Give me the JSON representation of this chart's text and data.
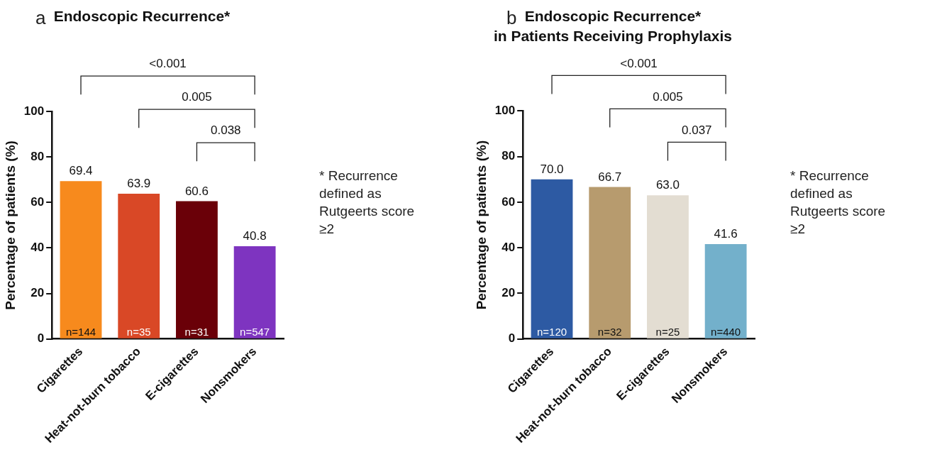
{
  "chart_data": [
    {
      "type": "bar",
      "title": "Endoscopic Recurrence*",
      "ylabel": "Percentage of patients (%)",
      "categories": [
        "Cigarettes",
        "Heat-not-burn tobacco",
        "E-cigarettes",
        "Nonsmokers"
      ],
      "values": [
        69.4,
        63.9,
        60.6,
        40.8
      ],
      "value_labels": [
        "69.4",
        "63.9",
        "60.6",
        "40.8"
      ],
      "colors": [
        "#f78a1d",
        "#d94826",
        "#6a0008",
        "#7e34c0"
      ],
      "ylim": [
        0,
        100
      ],
      "yticks": [
        0,
        20,
        40,
        60,
        80,
        100
      ],
      "grid": false,
      "legend": false,
      "annotations": [
        "a",
        "<0.001",
        "0.005",
        "0.038",
        "* Recurrence defined as Rutgeerts score ≥2",
        {
          "text": "n=144",
          "x": "Cigarettes",
          "y": 0
        },
        {
          "text": "n=35",
          "x": "Heat-not-burn tobacco",
          "y": 0
        },
        {
          "text": "n=31",
          "x": "E-cigarettes",
          "y": 0
        },
        {
          "text": "n=547",
          "x": "Nonsmokers",
          "y": 0
        }
      ]
    },
    {
      "type": "bar",
      "title": "Endoscopic Recurrence*",
      "subtitle": "in Patients Receiving Prophylaxis",
      "ylabel": "Percentage of patients (%)",
      "categories": [
        "Cigarettes",
        "Heat-not-burn tobacco",
        "E-cigarettes",
        "Nonsmokers"
      ],
      "values": [
        70.0,
        66.7,
        63.0,
        41.6
      ],
      "value_labels": [
        "70.0",
        "66.7",
        "63.0",
        "41.6"
      ],
      "colors": [
        "#2d5aa3",
        "#b79b6e",
        "#e3ddd2",
        "#73b0cb"
      ],
      "ylim": [
        0,
        100
      ],
      "yticks": [
        0,
        20,
        40,
        60,
        80,
        100
      ],
      "grid": false,
      "legend": false,
      "annotations": [
        "b",
        "<0.001",
        "0.005",
        "0.037",
        "* Recurrence defined as Rutgeerts score ≥2",
        {
          "text": "n=120",
          "x": "Cigarettes",
          "y": 0
        },
        {
          "text": "n=32",
          "x": "Heat-not-burn tobacco",
          "y": 0
        },
        {
          "text": "n=25",
          "x": "E-cigarettes",
          "y": 0
        },
        {
          "text": "n=440",
          "x": "Nonsmokers",
          "y": 0
        }
      ]
    }
  ]
}
